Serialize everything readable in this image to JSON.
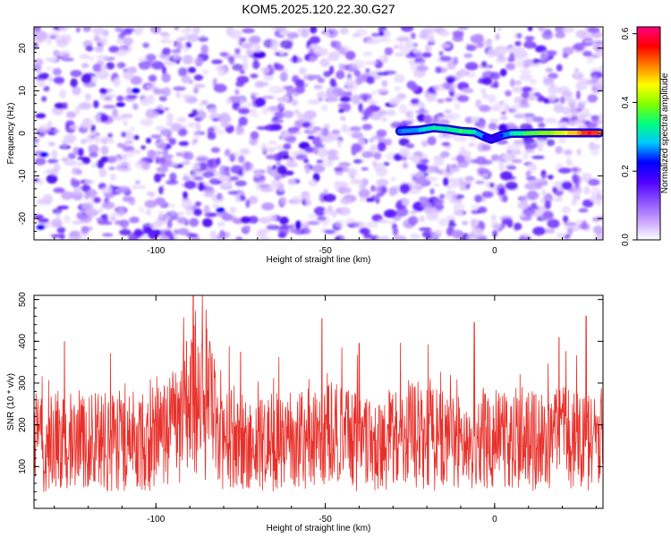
{
  "title": "KOM5.2025.120.22.30.G27",
  "colors": {
    "snr_line": "#e8302a",
    "axis": "#000000",
    "background": "#ffffff"
  },
  "chart_data": [
    {
      "type": "heatmap",
      "xlabel": "Height of straight line (km)",
      "ylabel": "Frequency (Hz)",
      "xlim": [
        -136,
        32
      ],
      "ylim": [
        -25,
        25
      ],
      "x_ticks": [
        -100,
        -50,
        0
      ],
      "y_ticks": [
        -20,
        -10,
        0,
        10,
        20
      ],
      "colorbar": {
        "label": "Normalized spectral amplitude",
        "range": [
          0.0,
          0.62
        ],
        "ticks": [
          0.0,
          0.2,
          0.4,
          0.6
        ],
        "colormap": [
          "#ffffff",
          "#c8a0ff",
          "#8c50ff",
          "#5000ff",
          "#0000ff",
          "#00c8ff",
          "#00ff80",
          "#80ff00",
          "#ffff00",
          "#ff8000",
          "#ff0000",
          "#ff0080"
        ]
      },
      "signal_track": [
        {
          "x": -28,
          "y": 0.5,
          "amp": 0.25
        },
        {
          "x": -22,
          "y": 0.8,
          "amp": 0.28
        },
        {
          "x": -18,
          "y": 1.3,
          "amp": 0.33
        },
        {
          "x": -14,
          "y": 1.0,
          "amp": 0.3
        },
        {
          "x": -10,
          "y": 0.5,
          "amp": 0.36
        },
        {
          "x": -6,
          "y": 0.3,
          "amp": 0.32
        },
        {
          "x": -3,
          "y": -0.8,
          "amp": 0.22
        },
        {
          "x": -1,
          "y": -1.4,
          "amp": 0.18
        },
        {
          "x": 2,
          "y": -0.5,
          "amp": 0.22
        },
        {
          "x": 5,
          "y": 0.0,
          "amp": 0.3
        },
        {
          "x": 9,
          "y": 0.0,
          "amp": 0.36
        },
        {
          "x": 13,
          "y": 0.1,
          "amp": 0.38
        },
        {
          "x": 17,
          "y": 0.1,
          "amp": 0.4
        },
        {
          "x": 21,
          "y": 0.1,
          "amp": 0.45
        },
        {
          "x": 25,
          "y": 0.1,
          "amp": 0.5
        },
        {
          "x": 28,
          "y": 0.1,
          "amp": 0.58
        },
        {
          "x": 31,
          "y": 0.1,
          "amp": 0.5
        }
      ]
    },
    {
      "type": "line",
      "xlabel": "Height of straight line (km)",
      "ylabel": "SNR (10 * v/v)",
      "xlim": [
        -136,
        32
      ],
      "ylim": [
        0,
        510
      ],
      "x_ticks": [
        -100,
        -50,
        0
      ],
      "y_ticks": [
        100,
        200,
        300,
        400,
        500
      ],
      "series": [
        {
          "color": "#e8302a",
          "x": [
            -136,
            -132,
            -128,
            -124,
            -120,
            -116,
            -112,
            -108,
            -104,
            -100,
            -96,
            -92,
            -88,
            -84,
            -80,
            -76,
            -72,
            -68,
            -64,
            -60,
            -56,
            -52,
            -48,
            -44,
            -40,
            -36,
            -32,
            -28,
            -24,
            -20,
            -16,
            -12,
            -8,
            -4,
            0,
            4,
            8,
            12,
            16,
            20,
            24,
            28,
            32
          ],
          "y": [
            160,
            150,
            170,
            155,
            175,
            160,
            165,
            155,
            170,
            165,
            185,
            210,
            260,
            230,
            180,
            165,
            155,
            160,
            150,
            165,
            170,
            160,
            175,
            165,
            160,
            150,
            170,
            165,
            175,
            170,
            165,
            160,
            170,
            175,
            165,
            160,
            170,
            160,
            165,
            170,
            160,
            165,
            175
          ],
          "peaks": [
            {
              "x": -89,
              "y": 510
            },
            {
              "x": -91,
              "y": 400
            },
            {
              "x": -85,
              "y": 430
            },
            {
              "x": -127,
              "y": 400
            },
            {
              "x": -75,
              "y": 375
            },
            {
              "x": -51,
              "y": 455
            },
            {
              "x": -40,
              "y": 395
            },
            {
              "x": -6,
              "y": 445
            },
            {
              "x": 27,
              "y": 460
            },
            {
              "x": 19,
              "y": 410
            }
          ]
        }
      ]
    }
  ]
}
